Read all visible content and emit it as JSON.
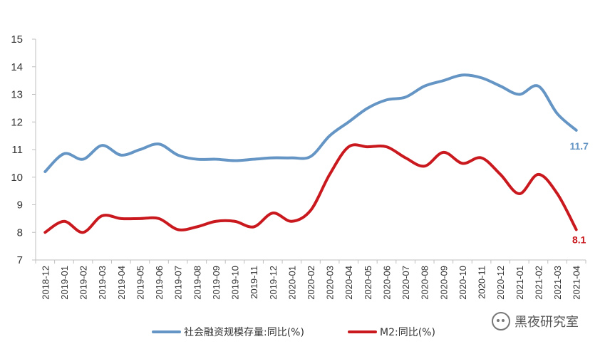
{
  "chart_data": {
    "type": "line",
    "x": [
      "2018-12",
      "2019-01",
      "2019-02",
      "2019-03",
      "2019-04",
      "2019-05",
      "2019-06",
      "2019-07",
      "2019-08",
      "2019-09",
      "2019-10",
      "2019-11",
      "2019-12",
      "2020-01",
      "2020-02",
      "2020-03",
      "2020-04",
      "2020-05",
      "2020-06",
      "2020-07",
      "2020-08",
      "2020-09",
      "2020-10",
      "2020-11",
      "2020-12",
      "2021-01",
      "2021-02",
      "2021-03",
      "2021-04"
    ],
    "ylim": [
      7,
      15
    ],
    "yticks": [
      "7",
      "8",
      "9",
      "10",
      "11",
      "12",
      "13",
      "14",
      "15"
    ],
    "grid": false,
    "legend_position": "bottom",
    "series": [
      {
        "name": "社会融资规模存量:同比(%)",
        "color": "#6495c4",
        "values": [
          10.2,
          10.85,
          10.65,
          11.15,
          10.8,
          11.0,
          11.2,
          10.8,
          10.65,
          10.65,
          10.6,
          10.65,
          10.7,
          10.7,
          10.75,
          11.5,
          12.0,
          12.5,
          12.8,
          12.9,
          13.3,
          13.5,
          13.7,
          13.6,
          13.3,
          13.0,
          13.3,
          12.3,
          11.7
        ],
        "end_label": "11.7"
      },
      {
        "name": "M2:同比(%)",
        "color": "#c9191e",
        "values": [
          8.0,
          8.4,
          8.0,
          8.6,
          8.5,
          8.5,
          8.5,
          8.1,
          8.2,
          8.4,
          8.4,
          8.2,
          8.7,
          8.4,
          8.8,
          10.1,
          11.1,
          11.1,
          11.1,
          10.7,
          10.4,
          10.9,
          10.5,
          10.7,
          10.1,
          9.4,
          10.1,
          9.4,
          8.1
        ],
        "end_label": "8.1"
      }
    ]
  },
  "watermark": "黑夜研究室"
}
